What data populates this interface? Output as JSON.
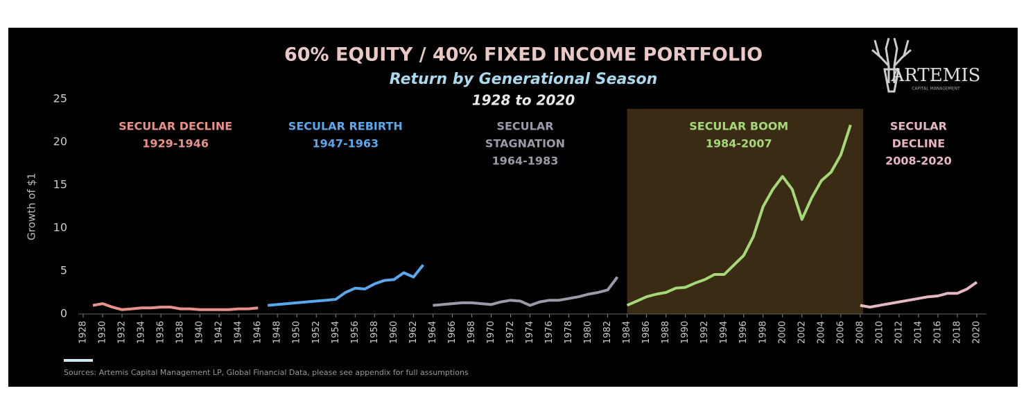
{
  "chart_data": {
    "type": "line",
    "title": "60% EQUITY / 40% FIXED INCOME PORTFOLIO",
    "subtitle": "Return by Generational Season",
    "period": "1928 to 2020",
    "y_label": "Growth of $1",
    "source": "Sources: Artemis Capital Management LP, Global Financial Data, please see appendix for full assumptions",
    "logo": {
      "name": "ARTEMIS",
      "tagline": "CAPITAL MANAGEMENT"
    },
    "xlim": [
      1927.5,
      2021
    ],
    "ylim": [
      0,
      25
    ],
    "yticks": [
      0,
      5,
      10,
      15,
      20,
      25
    ],
    "xticks": [
      1928,
      1930,
      1932,
      1934,
      1936,
      1938,
      1940,
      1942,
      1944,
      1946,
      1948,
      1950,
      1952,
      1954,
      1956,
      1958,
      1960,
      1962,
      1964,
      1966,
      1968,
      1970,
      1972,
      1974,
      1976,
      1978,
      1980,
      1982,
      1984,
      1986,
      1988,
      1990,
      1992,
      1994,
      1996,
      1998,
      2000,
      2002,
      2004,
      2006,
      2008,
      2010,
      2012,
      2014,
      2016,
      2018,
      2020
    ],
    "grid": false,
    "highlight": [
      1984,
      2008.3
    ],
    "series": [
      {
        "label": [
          "SECULAR DECLINE"
        ],
        "range": "1929-1946",
        "color": "#e8918a",
        "x": [
          1929,
          1930,
          1931,
          1932,
          1933,
          1934,
          1935,
          1936,
          1937,
          1938,
          1939,
          1940,
          1941,
          1942,
          1943,
          1944,
          1945,
          1946
        ],
        "values": [
          1.0,
          1.2,
          0.8,
          0.5,
          0.6,
          0.7,
          0.7,
          0.8,
          0.8,
          0.6,
          0.6,
          0.5,
          0.5,
          0.5,
          0.5,
          0.6,
          0.6,
          0.7
        ]
      },
      {
        "label": [
          "SECULAR REBIRTH"
        ],
        "range": "1947-1963",
        "color": "#5aa8ec",
        "x": [
          1947,
          1948,
          1949,
          1950,
          1951,
          1952,
          1953,
          1954,
          1955,
          1956,
          1957,
          1958,
          1959,
          1960,
          1961,
          1962,
          1963
        ],
        "values": [
          1.0,
          1.1,
          1.2,
          1.3,
          1.4,
          1.5,
          1.6,
          1.7,
          2.5,
          3.0,
          2.9,
          3.5,
          3.9,
          4.0,
          4.8,
          4.3,
          5.7
        ]
      },
      {
        "label": [
          "SECULAR",
          "STAGNATION"
        ],
        "range": "1964-1983",
        "color": "#9a9aa8",
        "x": [
          1964,
          1965,
          1966,
          1967,
          1968,
          1969,
          1970,
          1971,
          1972,
          1973,
          1974,
          1975,
          1976,
          1977,
          1978,
          1979,
          1980,
          1981,
          1982,
          1983
        ],
        "values": [
          1.0,
          1.1,
          1.2,
          1.3,
          1.3,
          1.2,
          1.1,
          1.4,
          1.6,
          1.5,
          1.0,
          1.4,
          1.6,
          1.6,
          1.8,
          2.0,
          2.3,
          2.5,
          2.8,
          4.3
        ]
      },
      {
        "label": [
          "SECULAR BOOM"
        ],
        "range": "1984-2007",
        "color": "#a6d87a",
        "x": [
          1984,
          1985,
          1986,
          1987,
          1988,
          1989,
          1990,
          1991,
          1992,
          1993,
          1994,
          1995,
          1996,
          1997,
          1998,
          1999,
          2000,
          2001,
          2002,
          2003,
          2004,
          2005,
          2006,
          2007
        ],
        "values": [
          1.0,
          1.5,
          2.0,
          2.3,
          2.5,
          3.0,
          3.1,
          3.6,
          4.0,
          4.6,
          4.6,
          5.7,
          6.8,
          9.0,
          12.5,
          14.5,
          16.0,
          14.5,
          11.0,
          13.5,
          15.5,
          16.5,
          18.5,
          22.0
        ]
      },
      {
        "label": [
          "SECULAR",
          "DECLINE"
        ],
        "range": "2008-2020",
        "color": "#e6b7c0",
        "x": [
          2008,
          2009,
          2010,
          2011,
          2012,
          2013,
          2014,
          2015,
          2016,
          2017,
          2018,
          2019,
          2020
        ],
        "values": [
          1.0,
          0.8,
          1.0,
          1.2,
          1.4,
          1.6,
          1.8,
          2.0,
          2.1,
          2.4,
          2.4,
          2.9,
          3.7
        ]
      }
    ]
  }
}
